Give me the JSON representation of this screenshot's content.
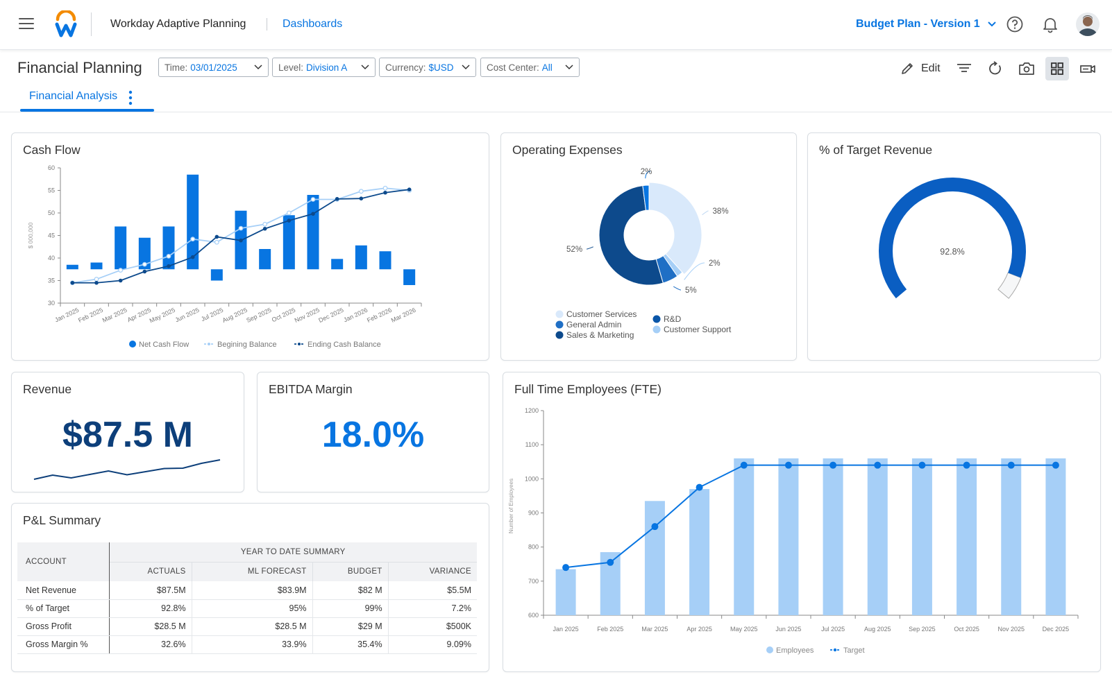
{
  "header": {
    "app_title": "Workday Adaptive Planning",
    "nav_link": "Dashboards",
    "version_select": "Budget Plan - Version 1"
  },
  "page": {
    "title": "Financial Planning",
    "filters": [
      {
        "label": "Time:",
        "value": "03/01/2025"
      },
      {
        "label": "Level:",
        "value": "Division A"
      },
      {
        "label": "Currency:",
        "value": "$USD"
      },
      {
        "label": "Cost Center:",
        "value": "All"
      }
    ],
    "edit_label": "Edit",
    "tab": "Financial Analysis"
  },
  "colors": {
    "accent": "#0875e1",
    "dark_blue": "#0d4a8c",
    "light_blue": "#a6cff7",
    "pale_blue": "#d9e9fb"
  },
  "cards": {
    "cash_flow": {
      "title": "Cash Flow"
    },
    "operating_expenses": {
      "title": "Operating Expenses"
    },
    "target_revenue": {
      "title": "% of Target Revenue"
    },
    "revenue": {
      "title": "Revenue",
      "value": "$87.5 M"
    },
    "ebitda": {
      "title": "EBITDA Margin",
      "value": "18.0%"
    },
    "fte": {
      "title": "Full Time Employees (FTE)"
    },
    "pl": {
      "title": "P&L Summary"
    }
  },
  "chart_data": [
    {
      "type": "bar",
      "title": "Cash Flow",
      "ylabel": "$ 000,000",
      "ylim": [
        30,
        60
      ],
      "yticks": [
        30,
        35,
        40,
        45,
        50,
        55,
        60
      ],
      "categories": [
        "Jan 2025",
        "Feb 2025",
        "Mar 2025",
        "Apr 2025",
        "May 2025",
        "Jun 2025",
        "Jul 2025",
        "Aug 2025",
        "Sep 2025",
        "Oct 2025",
        "Nov 2025",
        "Dec 2025",
        "Jan 2026",
        "Feb 2026",
        "Mar 2026"
      ],
      "bars": {
        "name": "Net Cash Flow",
        "from": [
          37.5,
          37.5,
          37.5,
          37.5,
          37.5,
          37.5,
          35,
          37.5,
          37.5,
          37.5,
          37.5,
          37.5,
          37.5,
          37.5,
          34
        ],
        "to": [
          38.5,
          39,
          47,
          44.5,
          47,
          58.5,
          37.5,
          50.5,
          42,
          49.5,
          54,
          39.8,
          42.8,
          41.5,
          37.5
        ]
      },
      "series": [
        {
          "name": "Begining Balance",
          "values": [
            34.5,
            35.3,
            37.3,
            38.6,
            40.4,
            44.2,
            43.5,
            46.6,
            47.5,
            50,
            53,
            53,
            54.8,
            55.5,
            55
          ]
        },
        {
          "name": "Ending Cash Balance",
          "values": [
            34.5,
            34.5,
            35,
            37,
            38.2,
            40.2,
            44.7,
            43.9,
            46.5,
            48.3,
            49.8,
            53.1,
            53.2,
            54.5,
            55.2
          ]
        }
      ],
      "legend": "bottom"
    },
    {
      "type": "pie",
      "title": "Operating Expenses",
      "slices": [
        {
          "name": "Customer Services",
          "value": 38,
          "label": "38%",
          "color": "#d9e9fb"
        },
        {
          "name": "Customer Support",
          "value": 2,
          "label": "2%",
          "color": "#a6cff7"
        },
        {
          "name": "General Admin",
          "value": 5,
          "label": "5%",
          "color": "#1f6fc5"
        },
        {
          "name": "Sales & Marketing",
          "value": 52,
          "label": "52%",
          "color": "#0d4a8c"
        },
        {
          "name": "R&D",
          "value": 2,
          "label": "2%",
          "color": "#0875e1"
        }
      ],
      "legend": "bottom",
      "legend_order": [
        {
          "name": "Customer Services",
          "color": "#d9e9fb"
        },
        {
          "name": "General Admin",
          "color": "#1f6fc5"
        },
        {
          "name": "Sales & Marketing",
          "color": "#0d4a8c"
        },
        {
          "name": "R&D",
          "color": "#0a56a8"
        },
        {
          "name": "Customer Support",
          "color": "#a6cff7"
        }
      ]
    },
    {
      "type": "gauge",
      "title": "% of Target Revenue",
      "value": 92.8,
      "label": "92.8%",
      "max": 100
    },
    {
      "type": "line",
      "title": "Revenue",
      "values": [
        1,
        2.2,
        1.4,
        2.4,
        3.4,
        2.3,
        3.2,
        4.1,
        4.2,
        5.6,
        6.6
      ]
    },
    {
      "type": "bar",
      "title": "Full Time Employees (FTE)",
      "ylabel": "Number of Employees",
      "ylim": [
        600,
        1200
      ],
      "yticks": [
        600,
        700,
        800,
        900,
        1000,
        1100,
        1200
      ],
      "categories": [
        "Jan 2025",
        "Feb 2025",
        "Mar 2025",
        "Apr 2025",
        "May 2025",
        "Jun 2025",
        "Jul 2025",
        "Aug 2025",
        "Sep 2025",
        "Oct 2025",
        "Nov 2025",
        "Dec 2025"
      ],
      "series": [
        {
          "name": "Employees",
          "values": [
            735,
            785,
            935,
            970,
            1060,
            1060,
            1060,
            1060,
            1060,
            1060,
            1060,
            1060
          ]
        },
        {
          "name": "Target",
          "values": [
            740,
            755,
            860,
            975,
            1040,
            1040,
            1040,
            1040,
            1040,
            1040,
            1040,
            1040
          ]
        }
      ],
      "legend": "bottom"
    }
  ],
  "pl_table": {
    "account_header": "ACCOUNT",
    "group_header": "YEAR TO DATE SUMMARY",
    "columns": [
      "ACTUALS",
      "ML FORECAST",
      "BUDGET",
      "VARIANCE"
    ],
    "rows": [
      {
        "account": "Net Revenue",
        "values": [
          "$87.5M",
          "$83.9M",
          "$82 M",
          "$5.5M"
        ]
      },
      {
        "account": "% of Target",
        "values": [
          "92.8%",
          "95%",
          "99%",
          "7.2%"
        ]
      },
      {
        "account": "Gross Profit",
        "values": [
          "$28.5 M",
          "$28.5 M",
          "$29 M",
          "$500K"
        ]
      },
      {
        "account": "Gross Margin %",
        "values": [
          "32.6%",
          "33.9%",
          "35.4%",
          "9.09%"
        ]
      }
    ]
  }
}
